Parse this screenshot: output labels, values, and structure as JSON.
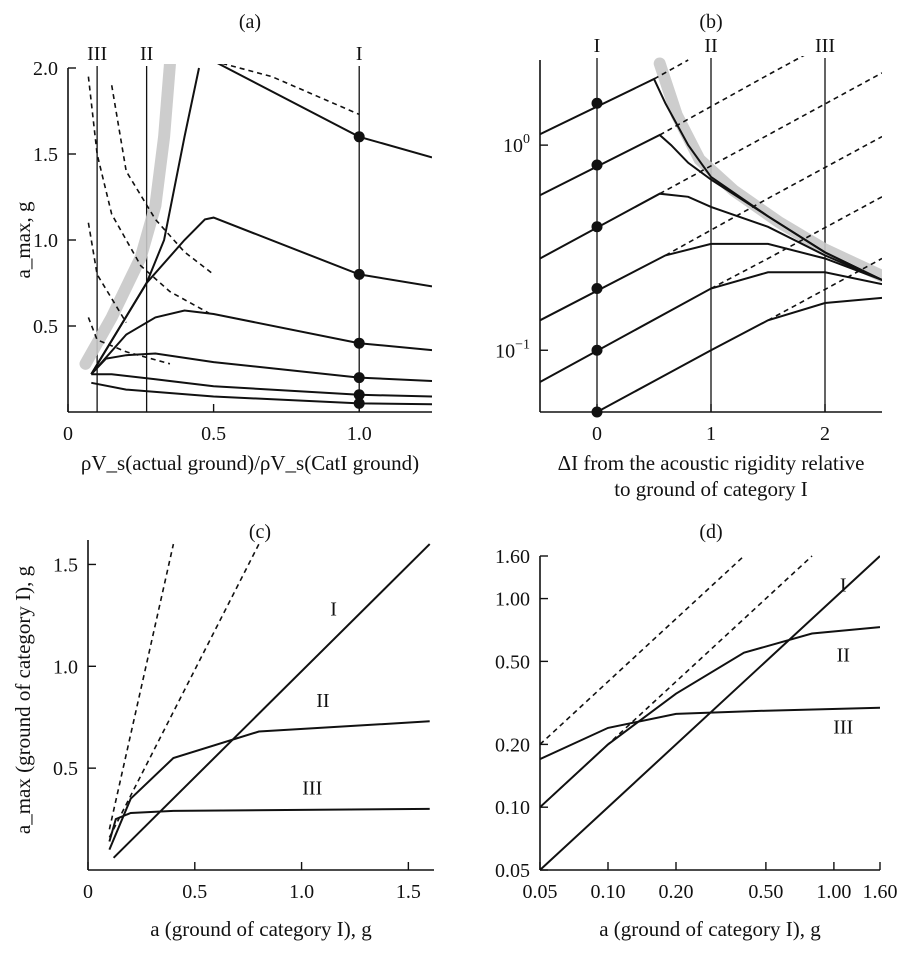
{
  "chart_data": [
    {
      "panel": "(a)",
      "type": "line",
      "xlabel": "ρV_s(actual ground)/ρV_s(CatI ground)",
      "ylabel": "a_max, g",
      "xlim": [
        0,
        1.25
      ],
      "ylim": [
        0,
        2.0
      ],
      "xticks": [
        "0",
        "0.5",
        "1.0"
      ],
      "yticks": [
        "0.5",
        "1.0",
        "1.5",
        "2.0"
      ],
      "category_lines": [
        {
          "label": "III",
          "x": 0.1
        },
        {
          "label": "II",
          "x": 0.27
        },
        {
          "label": "I",
          "x": 1.0
        }
      ],
      "series": [
        {
          "style": "solid",
          "points": [
            [
              0.5,
              2.04
            ],
            [
              1.0,
              1.6
            ],
            [
              1.25,
              1.48
            ]
          ]
        },
        {
          "style": "solid",
          "points": [
            [
              0.08,
              0.22
            ],
            [
              0.27,
              0.75
            ],
            [
              0.33,
              1.0
            ],
            [
              0.4,
              1.6
            ],
            [
              0.45,
              2.0
            ]
          ]
        },
        {
          "style": "solid",
          "points": [
            [
              0.08,
              0.22
            ],
            [
              0.27,
              0.75
            ],
            [
              0.4,
              1.0
            ],
            [
              0.47,
              1.12
            ],
            [
              0.5,
              1.13
            ],
            [
              1.0,
              0.8
            ],
            [
              1.25,
              0.73
            ]
          ]
        },
        {
          "style": "solid",
          "points": [
            [
              0.08,
              0.22
            ],
            [
              0.2,
              0.45
            ],
            [
              0.3,
              0.55
            ],
            [
              0.4,
              0.59
            ],
            [
              0.5,
              0.57
            ],
            [
              1.0,
              0.4
            ],
            [
              1.25,
              0.36
            ]
          ]
        },
        {
          "style": "solid",
          "points": [
            [
              0.08,
              0.22
            ],
            [
              0.13,
              0.31
            ],
            [
              0.2,
              0.33
            ],
            [
              0.3,
              0.34
            ],
            [
              0.5,
              0.29
            ],
            [
              1.0,
              0.2
            ],
            [
              1.25,
              0.18
            ]
          ]
        },
        {
          "style": "solid",
          "points": [
            [
              0.08,
              0.22
            ],
            [
              0.15,
              0.22
            ],
            [
              0.3,
              0.19
            ],
            [
              0.5,
              0.15
            ],
            [
              1.0,
              0.1
            ],
            [
              1.25,
              0.09
            ]
          ]
        },
        {
          "style": "solid",
          "points": [
            [
              0.08,
              0.17
            ],
            [
              0.2,
              0.13
            ],
            [
              0.5,
              0.09
            ],
            [
              1.0,
              0.05
            ],
            [
              1.25,
              0.045
            ]
          ]
        },
        {
          "style": "dashed",
          "points": [
            [
              0.5,
              2.04
            ],
            [
              0.7,
              1.95
            ],
            [
              1.0,
              1.73
            ]
          ]
        },
        {
          "style": "dashed",
          "points": [
            [
              0.07,
              1.95
            ],
            [
              0.1,
              1.5
            ],
            [
              0.15,
              1.15
            ],
            [
              0.25,
              0.85
            ],
            [
              0.35,
              0.7
            ],
            [
              0.5,
              0.56
            ]
          ]
        },
        {
          "style": "dashed",
          "points": [
            [
              0.07,
              1.1
            ],
            [
              0.1,
              0.8
            ],
            [
              0.2,
              0.52
            ]
          ]
        },
        {
          "style": "dashed",
          "points": [
            [
              0.15,
              1.9
            ],
            [
              0.2,
              1.4
            ],
            [
              0.3,
              1.12
            ],
            [
              0.4,
              0.93
            ],
            [
              0.5,
              0.8
            ]
          ]
        },
        {
          "style": "dashed",
          "points": [
            [
              0.07,
              0.55
            ],
            [
              0.1,
              0.42
            ],
            [
              0.2,
              0.35
            ],
            [
              0.35,
              0.28
            ]
          ]
        }
      ],
      "markers": [
        [
          1.0,
          1.6
        ],
        [
          1.0,
          0.8
        ],
        [
          1.0,
          0.4
        ],
        [
          1.0,
          0.2
        ],
        [
          1.0,
          0.1
        ],
        [
          1.0,
          0.05
        ]
      ]
    },
    {
      "panel": "(b)",
      "type": "line",
      "xlabel": "ΔI from the acoustic rigidity relative",
      "xlabel2": "to ground of category I",
      "ylabel": "",
      "yscale": "log",
      "xlim": [
        -0.5,
        2.5
      ],
      "ylim": [
        0.05,
        2.6
      ],
      "xticks": [
        "0",
        "1",
        "2"
      ],
      "yticks": [
        "10^0",
        "10^-1"
      ],
      "category_lines": [
        {
          "label": "I",
          "x": 0
        },
        {
          "label": "II",
          "x": 1
        },
        {
          "label": "III",
          "x": 2
        }
      ],
      "series": [
        {
          "style": "solid",
          "points": [
            [
              -0.5,
              1.13
            ],
            [
              0.5,
              2.1
            ],
            [
              0.6,
              1.6
            ],
            [
              0.8,
              1.0
            ],
            [
              1.0,
              0.7
            ],
            [
              1.5,
              0.45
            ],
            [
              2.0,
              0.3
            ],
            [
              2.5,
              0.22
            ]
          ]
        },
        {
          "style": "solid",
          "points": [
            [
              -0.5,
              0.57
            ],
            [
              0.55,
              1.12
            ],
            [
              0.65,
              1.0
            ],
            [
              0.8,
              0.82
            ],
            [
              1.0,
              0.68
            ],
            [
              1.5,
              0.45
            ],
            [
              2.0,
              0.3
            ],
            [
              2.5,
              0.22
            ]
          ]
        },
        {
          "style": "solid",
          "points": [
            [
              -0.5,
              0.28
            ],
            [
              0.55,
              0.58
            ],
            [
              0.8,
              0.56
            ],
            [
              1.0,
              0.5
            ],
            [
              1.5,
              0.4
            ],
            [
              2.0,
              0.29
            ],
            [
              2.5,
              0.22
            ]
          ]
        },
        {
          "style": "solid",
          "points": [
            [
              -0.5,
              0.14
            ],
            [
              0.6,
              0.29
            ],
            [
              1.0,
              0.33
            ],
            [
              1.5,
              0.33
            ],
            [
              2.0,
              0.28
            ],
            [
              2.5,
              0.22
            ]
          ]
        },
        {
          "style": "solid",
          "points": [
            [
              -0.5,
              0.07
            ],
            [
              1.0,
              0.2
            ],
            [
              1.5,
              0.24
            ],
            [
              2.0,
              0.24
            ],
            [
              2.5,
              0.21
            ]
          ]
        },
        {
          "style": "solid",
          "points": [
            [
              0.0,
              0.05
            ],
            [
              1.0,
              0.1
            ],
            [
              1.5,
              0.14
            ],
            [
              2.0,
              0.17
            ],
            [
              2.5,
              0.18
            ]
          ]
        },
        {
          "style": "dashed",
          "points": [
            [
              0.5,
              2.1
            ],
            [
              0.8,
              2.6
            ]
          ]
        },
        {
          "style": "dashed",
          "points": [
            [
              0.55,
              1.12
            ],
            [
              1.5,
              2.2
            ],
            [
              2.5,
              4.4
            ]
          ]
        },
        {
          "style": "dashed",
          "points": [
            [
              0.55,
              0.58
            ],
            [
              1.5,
              1.12
            ],
            [
              2.5,
              2.25
            ]
          ]
        },
        {
          "style": "dashed",
          "points": [
            [
              0.6,
              0.29
            ],
            [
              1.5,
              0.55
            ],
            [
              2.5,
              1.1
            ]
          ]
        },
        {
          "style": "dashed",
          "points": [
            [
              1.0,
              0.2
            ],
            [
              1.5,
              0.28
            ],
            [
              2.5,
              0.56
            ]
          ]
        },
        {
          "style": "dashed",
          "points": [
            [
              1.5,
              0.14
            ],
            [
              2.5,
              0.28
            ]
          ]
        }
      ],
      "markers": [
        [
          0,
          1.6
        ],
        [
          0,
          0.8
        ],
        [
          0,
          0.4
        ],
        [
          0,
          0.2
        ],
        [
          0,
          0.1
        ],
        [
          0,
          0.05
        ]
      ]
    },
    {
      "panel": "(c)",
      "type": "line",
      "xlabel": "a (ground of category I), g",
      "ylabel": "a_max (ground of category I), g",
      "xlim": [
        0,
        1.62
      ],
      "ylim": [
        0,
        1.62
      ],
      "xticks": [
        "0",
        "0.5",
        "1.0",
        "1.5"
      ],
      "yticks": [
        "0.5",
        "1.0",
        "1.5"
      ],
      "series": [
        {
          "name": "I",
          "style": "solid",
          "points": [
            [
              0.12,
              0.06
            ],
            [
              1.6,
              1.6
            ]
          ]
        },
        {
          "name": "II",
          "style": "solid",
          "points": [
            [
              0.1,
              0.1
            ],
            [
              0.2,
              0.35
            ],
            [
              0.4,
              0.55
            ],
            [
              0.8,
              0.68
            ],
            [
              1.6,
              0.73
            ]
          ]
        },
        {
          "name": "III",
          "style": "solid",
          "points": [
            [
              0.1,
              0.14
            ],
            [
              0.13,
              0.25
            ],
            [
              0.2,
              0.28
            ],
            [
              0.4,
              0.29
            ],
            [
              1.6,
              0.3
            ]
          ]
        },
        {
          "style": "dashed",
          "points": [
            [
              0.1,
              0.2
            ],
            [
              0.4,
              1.6
            ]
          ]
        },
        {
          "style": "dashed",
          "points": [
            [
              0.1,
              0.16
            ],
            [
              0.8,
              1.6
            ]
          ]
        }
      ]
    },
    {
      "panel": "(d)",
      "type": "line",
      "xlabel": "a (ground of category I), g",
      "ylabel": "",
      "xscale": "log",
      "yscale": "log",
      "xlim": [
        0.05,
        1.6
      ],
      "ylim": [
        0.05,
        1.6
      ],
      "xticks": [
        "0.05",
        "0.10",
        "0.20",
        "0.50",
        "1.00",
        "1.60"
      ],
      "yticks": [
        "0.05",
        "0.10",
        "0.20",
        "0.50",
        "1.00",
        "1.60"
      ],
      "series": [
        {
          "name": "I",
          "style": "solid",
          "points": [
            [
              0.05,
              0.05
            ],
            [
              1.6,
              1.6
            ]
          ]
        },
        {
          "name": "II",
          "style": "solid",
          "points": [
            [
              0.05,
              0.1
            ],
            [
              0.1,
              0.2
            ],
            [
              0.2,
              0.35
            ],
            [
              0.4,
              0.55
            ],
            [
              0.8,
              0.68
            ],
            [
              1.6,
              0.73
            ]
          ]
        },
        {
          "name": "III",
          "style": "solid",
          "points": [
            [
              0.05,
              0.17
            ],
            [
              0.1,
              0.24
            ],
            [
              0.2,
              0.28
            ],
            [
              0.5,
              0.29
            ],
            [
              1.6,
              0.3
            ]
          ]
        },
        {
          "style": "dashed",
          "points": [
            [
              0.05,
              0.2
            ],
            [
              0.4,
              1.6
            ]
          ]
        },
        {
          "style": "dashed",
          "points": [
            [
              0.05,
              0.1
            ],
            [
              0.8,
              1.6
            ]
          ]
        }
      ]
    }
  ]
}
